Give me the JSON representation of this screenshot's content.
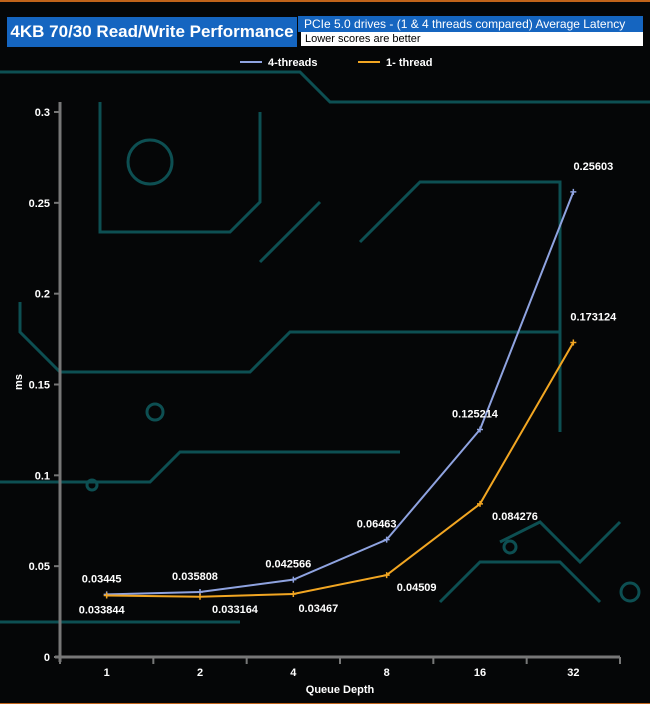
{
  "header": {
    "title": "4KB 70/30 Read/Write Performance",
    "subtitle": "PCIe 5.0 drives - (1 & 4 threads compared)  Average Latency",
    "note": "Lower scores are better"
  },
  "colors": {
    "four_threads": "#8fa3e0",
    "one_thread": "#f2a622",
    "title_bg": "#1565c0",
    "circuit": "#0d4f52"
  },
  "chart_data": {
    "type": "line",
    "xlabel": "Queue Depth",
    "ylabel": "ms",
    "categories": [
      "1",
      "2",
      "4",
      "8",
      "16",
      "32"
    ],
    "ylim": [
      0,
      0.3
    ],
    "yticks": [
      "0",
      "0.05",
      "0.1",
      "0.15",
      "0.2",
      "0.25",
      "0.3"
    ],
    "legend": "top",
    "series": [
      {
        "name": "4-threads",
        "values": [
          0.03445,
          0.035808,
          0.042566,
          0.06463,
          0.125214,
          0.25603
        ],
        "labels": [
          "0.03445",
          "0.035808",
          "0.042566",
          "0.06463",
          "0.125214",
          "0.25603"
        ]
      },
      {
        "name": "1- thread",
        "values": [
          0.033844,
          0.033164,
          0.03467,
          0.04509,
          0.084276,
          0.173124
        ],
        "labels": [
          "0.033844",
          "0.033164",
          "0.03467",
          "0.04509",
          "0.084276",
          "0.173124"
        ]
      }
    ]
  }
}
